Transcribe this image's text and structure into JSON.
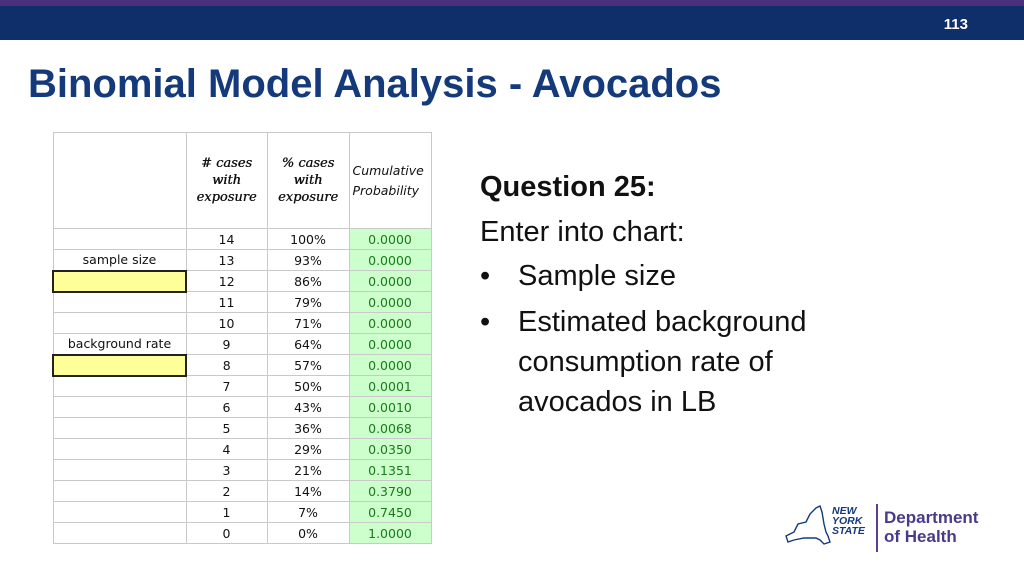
{
  "slide": {
    "number": "113",
    "title": "Binomial Model Analysis - Avocados"
  },
  "sheet": {
    "headers": {
      "cases": [
        "# cases",
        "with",
        "exposure"
      ],
      "pct": [
        "% cases",
        "with",
        "exposure"
      ],
      "cum": [
        "Cumulative",
        "Probability"
      ]
    },
    "labels": {
      "sample_size": "sample size",
      "background_rate": "background rate"
    },
    "rows": [
      {
        "cases": "14",
        "pct": "100%",
        "prob": "0.0000"
      },
      {
        "cases": "13",
        "pct": "93%",
        "prob": "0.0000"
      },
      {
        "cases": "12",
        "pct": "86%",
        "prob": "0.0000"
      },
      {
        "cases": "11",
        "pct": "79%",
        "prob": "0.0000"
      },
      {
        "cases": "10",
        "pct": "71%",
        "prob": "0.0000"
      },
      {
        "cases": "9",
        "pct": "64%",
        "prob": "0.0000"
      },
      {
        "cases": "8",
        "pct": "57%",
        "prob": "0.0000"
      },
      {
        "cases": "7",
        "pct": "50%",
        "prob": "0.0001"
      },
      {
        "cases": "6",
        "pct": "43%",
        "prob": "0.0010"
      },
      {
        "cases": "5",
        "pct": "36%",
        "prob": "0.0068"
      },
      {
        "cases": "4",
        "pct": "29%",
        "prob": "0.0350"
      },
      {
        "cases": "3",
        "pct": "21%",
        "prob": "0.1351"
      },
      {
        "cases": "2",
        "pct": "14%",
        "prob": "0.3790"
      },
      {
        "cases": "1",
        "pct": "7%",
        "prob": "0.7450"
      },
      {
        "cases": "0",
        "pct": "0%",
        "prob": "1.0000"
      }
    ]
  },
  "question": {
    "title": "Question 25:",
    "intro": "Enter into chart:",
    "bullet_char": "•",
    "bullets": [
      "Sample size",
      "Estimated background consumption rate of avocados in LB"
    ]
  },
  "logo": {
    "state_lines": [
      "NEW",
      "YORK",
      "STATE"
    ],
    "dept_lines": [
      "Department",
      "of Health"
    ]
  },
  "colors": {
    "header_bar": "#0f2f6b",
    "title": "#143a7b",
    "input_cell": "#ffff99",
    "prob_cell": "#ccffcc"
  }
}
